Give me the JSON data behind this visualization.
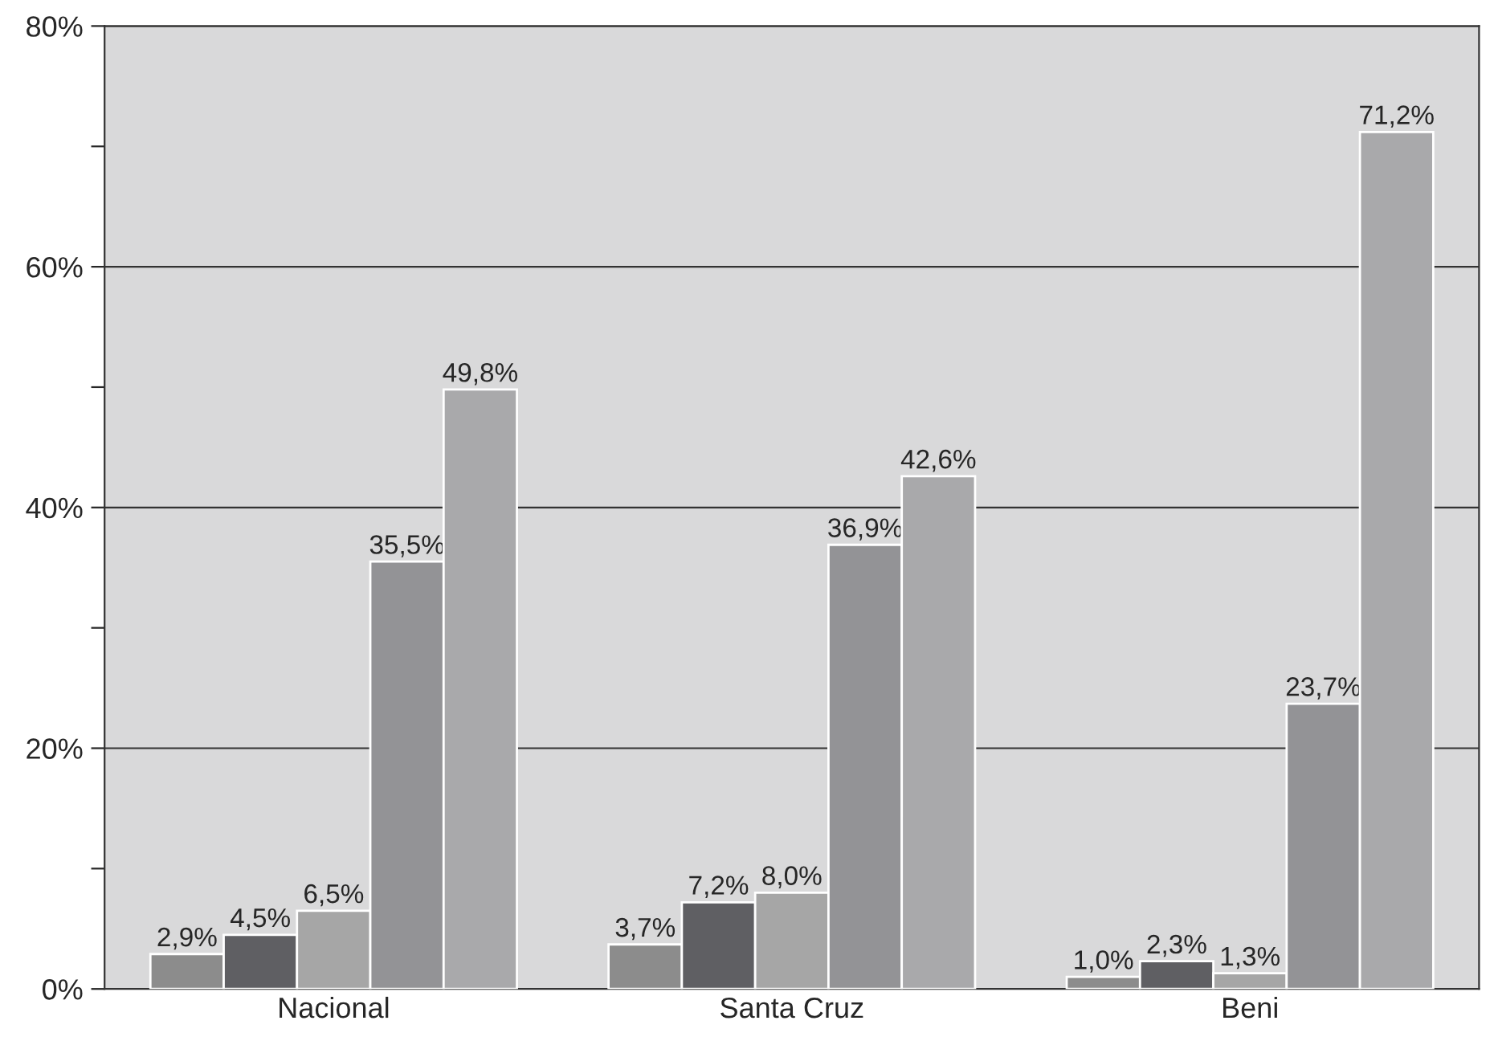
{
  "chart_data": {
    "type": "bar",
    "categories": [
      "Nacional",
      "Santa Cruz",
      "Beni"
    ],
    "series": [
      {
        "color": "#8c8c8c",
        "values": [
          2.9,
          3.7,
          1.0
        ],
        "value_labels": [
          "2,9%",
          "3,7%",
          "1,0%"
        ]
      },
      {
        "color": "#5f5f63",
        "values": [
          4.5,
          7.2,
          2.3
        ],
        "value_labels": [
          "4,5%",
          "7,2%",
          "2,3%"
        ]
      },
      {
        "color": "#a6a6a6",
        "values": [
          6.5,
          8.0,
          1.3
        ],
        "value_labels": [
          "6,5%",
          "8,0%",
          "1,3%"
        ]
      },
      {
        "color": "#939396",
        "values": [
          35.5,
          36.9,
          23.7
        ],
        "value_labels": [
          "35,5%",
          "36,9%",
          "23,7%"
        ]
      },
      {
        "color": "#a9a9ab",
        "values": [
          49.8,
          42.6,
          71.2
        ],
        "value_labels": [
          "49,8%",
          "42,6%",
          "71,2%"
        ]
      }
    ],
    "ylim": [
      0,
      80
    ],
    "yticks": [
      {
        "value": 0,
        "label": "0%"
      },
      {
        "value": 10,
        "label": null
      },
      {
        "value": 20,
        "label": "20%"
      },
      {
        "value": 30,
        "label": null
      },
      {
        "value": 40,
        "label": "40%"
      },
      {
        "value": 50,
        "label": null
      },
      {
        "value": 60,
        "label": "60%"
      },
      {
        "value": 70,
        "label": null
      },
      {
        "value": 80,
        "label": "80%"
      }
    ],
    "grid": "y",
    "legend": false
  }
}
